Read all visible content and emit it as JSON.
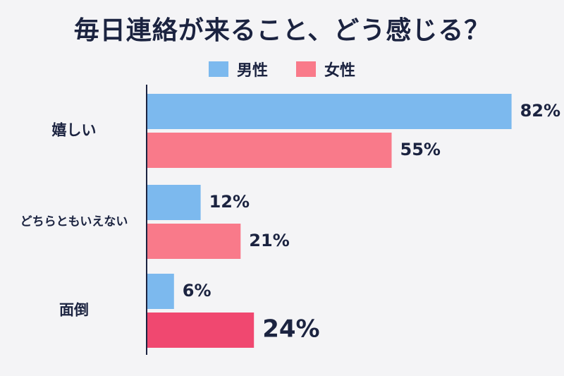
{
  "title": "毎日連絡が来ること、どう感じる？",
  "legend": [
    {
      "name": "男性",
      "color": "#7cb9ee"
    },
    {
      "name": "女性",
      "color": "#f97a8a"
    }
  ],
  "chart_data": {
    "type": "bar",
    "orientation": "horizontal",
    "title": "毎日連絡が来ること、どう感じる？",
    "categories": [
      "嬉しい",
      "どちらともいえない",
      "面倒"
    ],
    "series": [
      {
        "name": "男性",
        "color": "#7cb9ee",
        "values": [
          82,
          12,
          6
        ]
      },
      {
        "name": "女性",
        "color": "#f97a8a",
        "values": [
          55,
          21,
          24
        ]
      }
    ],
    "value_suffix": "%",
    "highlight": {
      "series": 1,
      "category": 2,
      "color": "#f04870"
    },
    "xlim": [
      0,
      100
    ],
    "grid": false,
    "legend_position": "top-center"
  }
}
